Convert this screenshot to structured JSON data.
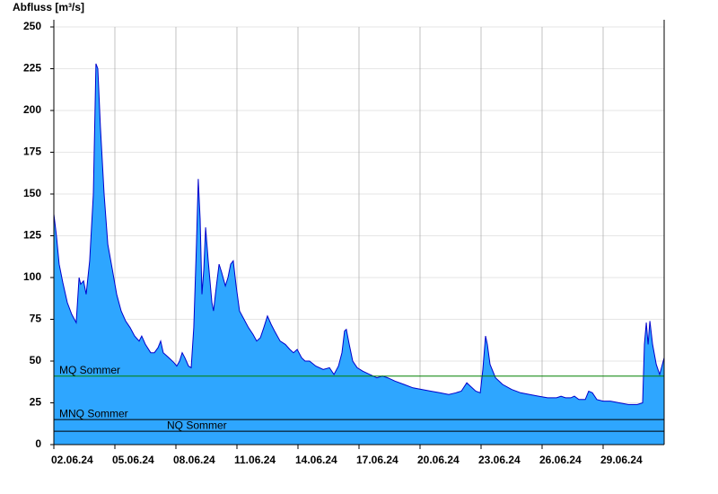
{
  "chart_data": {
    "type": "area",
    "y_label": "Abfluss [m³/s]",
    "series": [
      {
        "name": "Abfluss",
        "color": "#2ea6ff",
        "line_color": "#0000cc",
        "x": [
          0,
          0.13,
          0.26,
          0.44,
          0.66,
          0.88,
          1.1,
          1.24,
          1.32,
          1.46,
          1.59,
          1.76,
          1.94,
          2.07,
          2.16,
          2.29,
          2.47,
          2.65,
          2.87,
          3.09,
          3.31,
          3.53,
          3.75,
          3.97,
          4.19,
          4.32,
          4.5,
          4.76,
          4.94,
          5.12,
          5.25,
          5.38,
          5.65,
          5.91,
          6.04,
          6.18,
          6.31,
          6.44,
          6.62,
          6.75,
          6.88,
          7.01,
          7.1,
          7.19,
          7.28,
          7.37,
          7.46,
          7.59,
          7.77,
          7.85,
          7.99,
          8.12,
          8.25,
          8.43,
          8.56,
          8.69,
          8.82,
          8.96,
          9.13,
          9.35,
          9.57,
          9.79,
          9.97,
          10.15,
          10.32,
          10.5,
          10.68,
          10.85,
          11.12,
          11.38,
          11.6,
          11.78,
          11.96,
          12.18,
          12.35,
          12.57,
          12.88,
          13.24,
          13.55,
          13.77,
          13.99,
          14.16,
          14.29,
          14.38,
          14.52,
          14.69,
          14.91,
          15.18,
          15.53,
          15.88,
          16.15,
          16.41,
          16.77,
          17.21,
          17.65,
          18.09,
          18.53,
          18.97,
          19.41,
          19.77,
          20.03,
          20.3,
          20.47,
          20.74,
          20.96,
          21.09,
          21.22,
          21.31,
          21.44,
          21.71,
          22.06,
          22.5,
          22.94,
          23.39,
          23.83,
          24.27,
          24.71,
          24.93,
          25.15,
          25.41,
          25.59,
          25.81,
          26.12,
          26.29,
          26.47,
          26.69,
          27.0,
          27.36,
          27.8,
          28.24,
          28.68,
          28.94,
          29.03,
          29.12,
          29.21,
          29.3,
          29.43,
          29.61,
          29.78,
          29.91,
          30
        ],
        "values": [
          138,
          125,
          108,
          97,
          85,
          78,
          73,
          100,
          96,
          98,
          90,
          110,
          150,
          228,
          225,
          190,
          150,
          120,
          105,
          90,
          80,
          74,
          70,
          65,
          62,
          65,
          60,
          55,
          55,
          58,
          62,
          55,
          52,
          49,
          47,
          50,
          55,
          52,
          47,
          46,
          70,
          120,
          159,
          135,
          90,
          105,
          130,
          110,
          85,
          80,
          95,
          108,
          103,
          95,
          100,
          108,
          110,
          95,
          80,
          75,
          70,
          66,
          62,
          64,
          70,
          77,
          72,
          68,
          62,
          60,
          57,
          55,
          57,
          52,
          50,
          50,
          47,
          45,
          46,
          42,
          47,
          55,
          68,
          69,
          60,
          50,
          46,
          44,
          42,
          40,
          41,
          40,
          38,
          36,
          34,
          33,
          32,
          31,
          30,
          31,
          32,
          37,
          35,
          32,
          31,
          45,
          65,
          60,
          48,
          40,
          36,
          33,
          31,
          30,
          29,
          28,
          28,
          29,
          28,
          28,
          29,
          27,
          27,
          32,
          31,
          27,
          26,
          26,
          25,
          24,
          24,
          25,
          60,
          73,
          60,
          74,
          60,
          48,
          42,
          48,
          52
        ]
      }
    ],
    "thresholds": [
      {
        "name": "MQ Sommer",
        "value": 41,
        "color": "#008000"
      },
      {
        "name": "MNQ Sommer",
        "value": 15,
        "color": "#000000"
      },
      {
        "name": "NQ Sommer",
        "value": 8,
        "color": "#000000"
      }
    ],
    "xlim": [
      0,
      30
    ],
    "xticks": [
      {
        "value": 0,
        "label": "02.06.24"
      },
      {
        "value": 3,
        "label": "05.06.24"
      },
      {
        "value": 6,
        "label": "08.06.24"
      },
      {
        "value": 9,
        "label": "11.06.24"
      },
      {
        "value": 12,
        "label": "14.06.24"
      },
      {
        "value": 15,
        "label": "17.06.24"
      },
      {
        "value": 18,
        "label": "20.06.24"
      },
      {
        "value": 21,
        "label": "23.06.24"
      },
      {
        "value": 24,
        "label": "26.06.24"
      },
      {
        "value": 27,
        "label": "29.06.24"
      }
    ],
    "ylim": [
      0,
      250
    ],
    "yticks": [
      0,
      25,
      50,
      75,
      100,
      125,
      150,
      175,
      200,
      225,
      250
    ],
    "grid": true
  }
}
